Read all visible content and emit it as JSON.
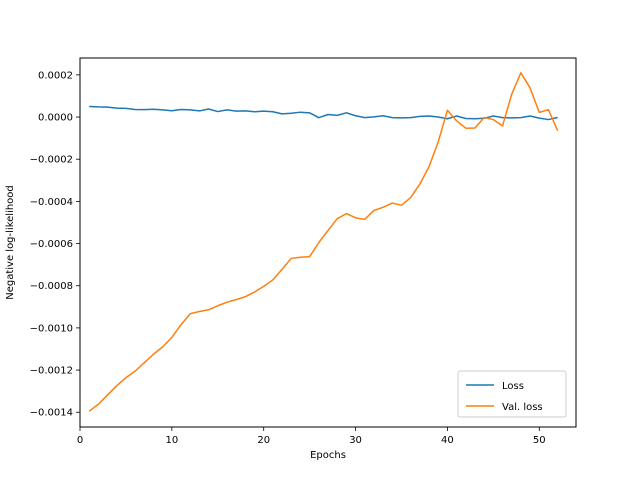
{
  "chart_data": {
    "type": "line",
    "title": "",
    "xlabel": "Epochs",
    "ylabel": "Negative log-likelihood",
    "xlim": [
      0,
      54
    ],
    "ylim": [
      -0.00147,
      0.00028
    ],
    "xticks": [
      0,
      10,
      20,
      30,
      40,
      50
    ],
    "yticks": [
      0.0002,
      0.0,
      -0.0002,
      -0.0004,
      -0.0006,
      -0.0008,
      -0.001,
      -0.0012,
      -0.0014
    ],
    "ytick_labels": [
      "0.0002",
      "0.0000",
      "−0.0002",
      "−0.0004",
      "−0.0006",
      "−0.0008",
      "−0.0010",
      "−0.0012",
      "−0.0014"
    ],
    "xtick_labels": [
      "0",
      "10",
      "20",
      "30",
      "40",
      "50"
    ],
    "grid": false,
    "legend_position": "lower-right",
    "x": [
      1,
      2,
      3,
      4,
      5,
      6,
      7,
      8,
      9,
      10,
      11,
      12,
      13,
      14,
      15,
      16,
      17,
      18,
      19,
      20,
      21,
      22,
      23,
      24,
      25,
      26,
      27,
      28,
      29,
      30,
      31,
      32,
      33,
      34,
      35,
      36,
      37,
      38,
      39,
      40,
      41,
      42,
      43,
      44,
      45,
      46,
      47,
      48,
      49,
      50,
      51,
      52
    ],
    "series": [
      {
        "name": "Loss",
        "color": "#1f77b4",
        "values": [
          5e-05,
          4.8e-05,
          4.7e-05,
          4.2e-05,
          4.1e-05,
          3.6e-05,
          3.5e-05,
          3.7e-05,
          3.4e-05,
          3e-05,
          3.6e-05,
          3.4e-05,
          2.9e-05,
          3.8e-05,
          2.6e-05,
          3.4e-05,
          2.8e-05,
          2.9e-05,
          2.5e-05,
          2.8e-05,
          2.5e-05,
          1.5e-05,
          1.8e-05,
          2.3e-05,
          2e-05,
          -3e-06,
          1.2e-05,
          8e-06,
          2e-05,
          6e-06,
          -3e-06,
          1e-06,
          6e-06,
          -3e-06,
          -4e-06,
          -3e-06,
          3e-06,
          5e-06,
          0.0,
          -8e-06,
          5e-06,
          -7e-06,
          -8e-06,
          -6e-06,
          5e-06,
          -3e-06,
          -4e-06,
          -3e-06,
          5e-06,
          -5e-06,
          -1.2e-05,
          -2e-06
        ]
      },
      {
        "name": "Val. loss",
        "color": "#ff7f0e",
        "values": [
          -0.001395,
          -0.001362,
          -0.001318,
          -0.001274,
          -0.001236,
          -0.001205,
          -0.001165,
          -0.001125,
          -0.00109,
          -0.001045,
          -0.000985,
          -0.000933,
          -0.000922,
          -0.000914,
          -0.000895,
          -0.000878,
          -0.000866,
          -0.000852,
          -0.00083,
          -0.000803,
          -0.000772,
          -0.000722,
          -0.00067,
          -0.000665,
          -0.000662,
          -0.000595,
          -0.000538,
          -0.000482,
          -0.000458,
          -0.000478,
          -0.000485,
          -0.000443,
          -0.000428,
          -0.000408,
          -0.000418,
          -0.000382,
          -0.000318,
          -0.000235,
          -0.000118,
          3.2e-05,
          -1.8e-05,
          -5.3e-05,
          -5.2e-05,
          -2e-06,
          -1.2e-05,
          -4.2e-05,
          0.000108,
          0.00021,
          0.000138,
          2.2e-05,
          3.5e-05,
          -6.5e-05
        ]
      }
    ]
  }
}
